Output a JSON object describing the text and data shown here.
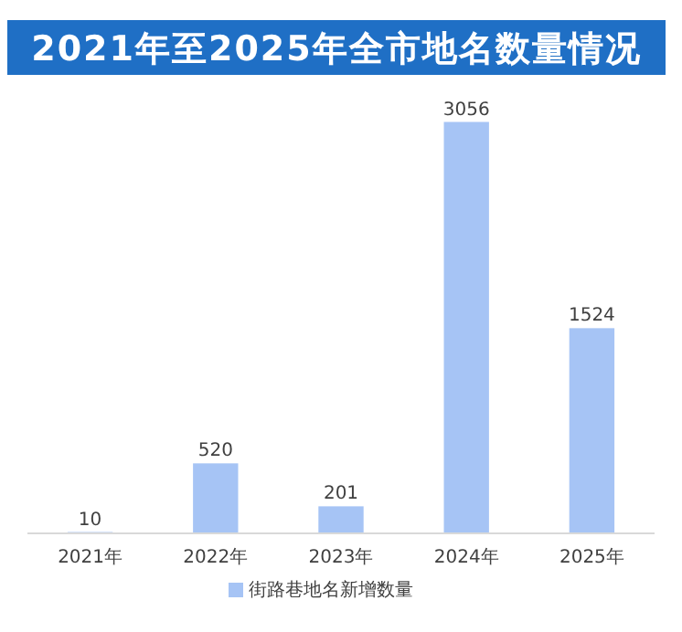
{
  "chart_data": {
    "type": "bar",
    "title": "2021年至2025年全市地名数量情况",
    "categories": [
      "2021年",
      "2022年",
      "2023年",
      "2024年",
      "2025年"
    ],
    "series": [
      {
        "name": "街路巷地名新增数量",
        "color": "#a6c4f5",
        "values": [
          10,
          520,
          201,
          3056,
          1524
        ]
      }
    ],
    "data_labels": true,
    "legend": "bottom",
    "grid": false
  }
}
